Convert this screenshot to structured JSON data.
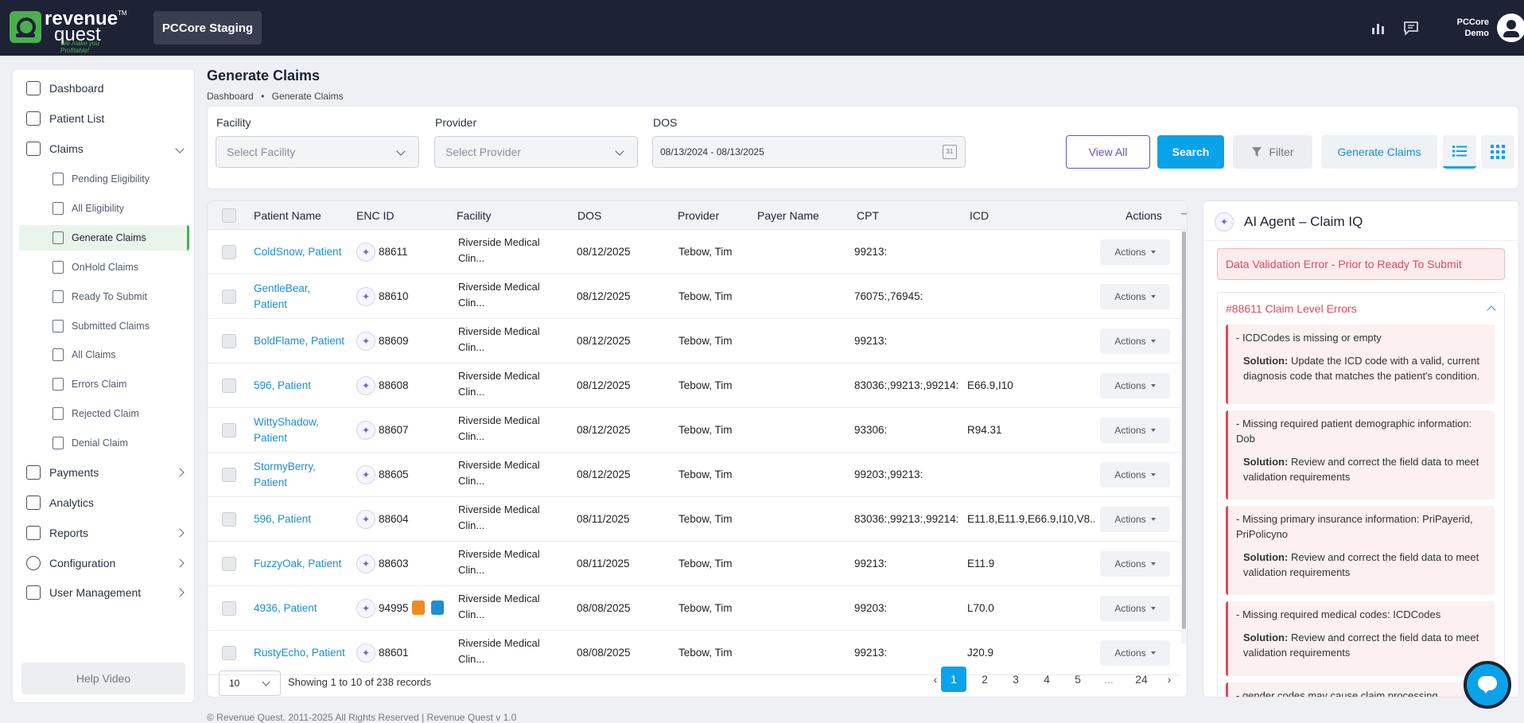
{
  "brand": {
    "name_line1": "revenue",
    "name_line2": "quest",
    "tagline": "We make you Profitable!",
    "trademark": "TM",
    "green": "#4cae4f",
    "dark": "#1e2235",
    "accent": "#0aa2e8"
  },
  "header": {
    "environment": "PCCore Staging",
    "user_line1": "PCCore",
    "user_line2": "Demo",
    "icons": [
      "bar-chart-icon",
      "chat-bubble-icon",
      "user-avatar-icon"
    ]
  },
  "sidebar": {
    "items": [
      {
        "label": "Dashboard",
        "icon": "dashboard-icon"
      },
      {
        "label": "Patient List",
        "icon": "patient-list-icon"
      },
      {
        "label": "Claims",
        "icon": "claims-icon",
        "expanded": true
      },
      {
        "label": "Payments",
        "icon": "payments-icon"
      },
      {
        "label": "Analytics",
        "icon": "analytics-icon"
      },
      {
        "label": "Reports",
        "icon": "reports-icon"
      },
      {
        "label": "Configuration",
        "icon": "gear-icon"
      },
      {
        "label": "User Management",
        "icon": "user-management-icon"
      }
    ],
    "claims_sub": [
      "Pending Eligibility",
      "All Eligibility",
      "Generate Claims",
      "OnHold Claims",
      "Ready To Submit",
      "Submitted Claims",
      "All Claims",
      "Errors Claim",
      "Rejected Claim",
      "Denial Claim"
    ],
    "active_sub": "Generate Claims",
    "help": "Help Video"
  },
  "page": {
    "title": "Generate Claims",
    "breadcrumb_home": "Dashboard",
    "breadcrumb_sep": "•",
    "breadcrumb_current": "Generate Claims"
  },
  "filters": {
    "facility_label": "Facility",
    "facility_placeholder": "Select Facility",
    "provider_label": "Provider",
    "provider_placeholder": "Select Provider",
    "dos_label": "DOS",
    "dos_value": "08/13/2024 - 08/13/2025",
    "calendar_day": "31",
    "view_all": "View All",
    "search": "Search",
    "filter": "Filter",
    "generate": "Generate Claims"
  },
  "table": {
    "columns": [
      "Patient Name",
      "ENC ID",
      "Facility",
      "DOS",
      "Provider",
      "Payer Name",
      "CPT",
      "ICD",
      "Actions"
    ],
    "action_label": "Actions",
    "rows": [
      {
        "patient": "ColdSnow, Patient",
        "enc": "88611",
        "facility1": "Riverside Medical",
        "facility2": "Clin...",
        "dos": "08/12/2025",
        "provider": "Tebow, Tim",
        "payer": "",
        "cpt": "99213:",
        "icd": ""
      },
      {
        "patient": "GentleBear,",
        "patient2": "Patient",
        "enc": "88610",
        "facility1": "Riverside Medical",
        "facility2": "Clin...",
        "dos": "08/12/2025",
        "provider": "Tebow, Tim",
        "payer": "",
        "cpt": "76075:,76945:",
        "icd": ""
      },
      {
        "patient": "BoldFlame, Patient",
        "enc": "88609",
        "facility1": "Riverside Medical",
        "facility2": "Clin...",
        "dos": "08/12/2025",
        "provider": "Tebow, Tim",
        "payer": "",
        "cpt": "99213:",
        "icd": ""
      },
      {
        "patient": "596, Patient",
        "enc": "88608",
        "facility1": "Riverside Medical",
        "facility2": "Clin...",
        "dos": "08/12/2025",
        "provider": "Tebow, Tim",
        "payer": "",
        "cpt": "83036:,99213:,99214:",
        "icd": "E66.9,I10"
      },
      {
        "patient": "WittyShadow,",
        "patient2": "Patient",
        "enc": "88607",
        "facility1": "Riverside Medical",
        "facility2": "Clin...",
        "dos": "08/12/2025",
        "provider": "Tebow, Tim",
        "payer": "",
        "cpt": "93306:",
        "icd": "R94.31"
      },
      {
        "patient": "StormyBerry,",
        "patient2": "Patient",
        "enc": "88605",
        "facility1": "Riverside Medical",
        "facility2": "Clin...",
        "dos": "08/12/2025",
        "provider": "Tebow, Tim",
        "payer": "",
        "cpt": "99203:,99213:",
        "icd": ""
      },
      {
        "patient": "596, Patient",
        "enc": "88604",
        "facility1": "Riverside Medical",
        "facility2": "Clin...",
        "dos": "08/11/2025",
        "provider": "Tebow, Tim",
        "payer": "",
        "cpt": "83036:,99213:,99214:",
        "icd": "E11.8,E11.9,E66.9,I10,V8..."
      },
      {
        "patient": "FuzzyOak, Patient",
        "enc": "88603",
        "facility1": "Riverside Medical",
        "facility2": "Clin...",
        "dos": "08/11/2025",
        "provider": "Tebow, Tim",
        "payer": "",
        "cpt": "99213:",
        "icd": "E11.9"
      },
      {
        "patient": "4936, Patient",
        "enc": "94995",
        "flags": true,
        "facility1": "Riverside Medical",
        "facility2": "Clin...",
        "dos": "08/08/2025",
        "provider": "Tebow, Tim",
        "payer": "",
        "cpt": "99203:",
        "icd": "L70.0"
      },
      {
        "patient": "RustyEcho, Patient",
        "enc": "88601",
        "facility1": "Riverside Medical",
        "facility2": "Clin...",
        "dos": "08/08/2025",
        "provider": "Tebow, Tim",
        "payer": "",
        "cpt": "99213:",
        "icd": "J20.9"
      }
    ]
  },
  "pagination": {
    "page_size": "10",
    "showing": "Showing 1 to 10 of 238 records",
    "pages": [
      "1",
      "2",
      "3",
      "4",
      "5",
      "...",
      "24"
    ],
    "current": "1",
    "prev": "‹",
    "next": "›"
  },
  "ai_panel": {
    "title": "AI Agent – Claim IQ",
    "alert": "Data Validation Error - Prior to Ready To Submit",
    "section_title": "#88611 Claim Level Errors",
    "solution_label": "Solution:",
    "errors": [
      {
        "issue": "- ICDCodes is missing or empty",
        "solution": "Update the ICD code with a valid, current diagnosis code that matches the patient's condition."
      },
      {
        "issue": "- Missing required patient demographic information: Dob",
        "solution": "Review and correct the field data to meet validation requirements"
      },
      {
        "issue": "- Missing primary insurance information: PriPayerid, PriPolicyno",
        "solution": "Review and correct the field data to meet validation requirements"
      },
      {
        "issue": "- Missing required medical codes: ICDCodes",
        "solution": "Review and correct the field data to meet validation requirements"
      },
      {
        "issue": "- gender codes may cause claim processing",
        "solution": ""
      }
    ]
  },
  "footer": {
    "text": "© Revenue Quest. 2011-2025 All Rights Reserved | Revenue Quest v 1.0"
  }
}
